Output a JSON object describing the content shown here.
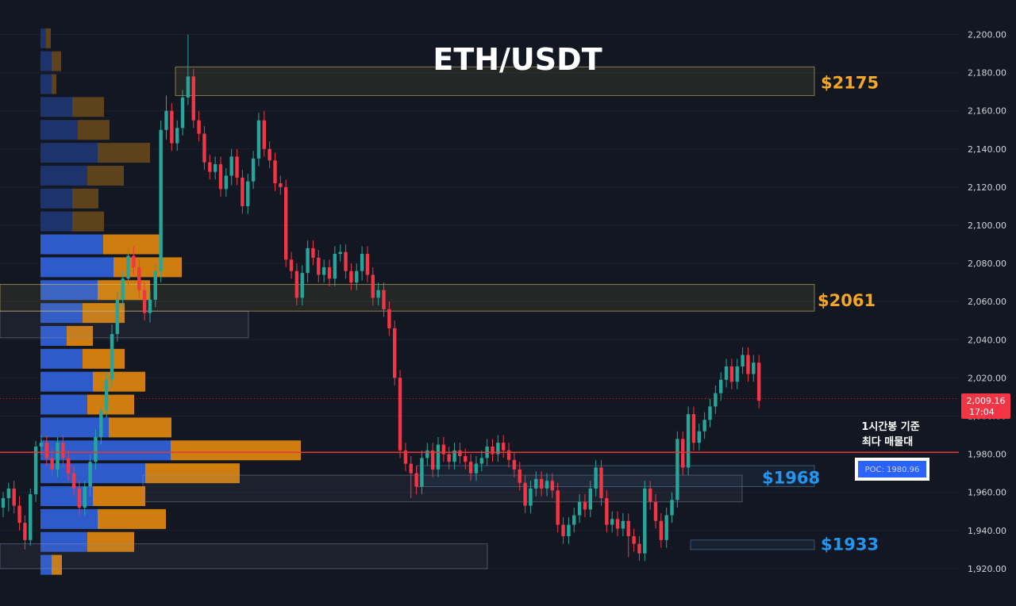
{
  "chart_data": {
    "type": "candlestick",
    "title": "ETH/USDT",
    "ylim": [
      1905,
      2208
    ],
    "y_ticks": [
      "2,200.00",
      "2,180.00",
      "2,160.00",
      "2,140.00",
      "2,120.00",
      "2,100.00",
      "2,080.00",
      "2,060.00",
      "2,040.00",
      "2,020.00",
      "2,000.00",
      "1,980.00",
      "1,960.00",
      "1,940.00",
      "1,920.00"
    ],
    "y_tick_values": [
      2200,
      2180,
      2160,
      2140,
      2120,
      2100,
      2080,
      2060,
      2040,
      2020,
      2000,
      1980,
      1960,
      1940,
      1920
    ],
    "last_price": {
      "value": 2009.16,
      "label": "2,009.16",
      "countdown": "17:04",
      "color": "#f23645"
    },
    "poc": {
      "value": 1980.96,
      "label": "POC:  1980.96",
      "color": "#2962ff"
    },
    "annotation": {
      "line1": "1시간봉 기준",
      "line2": "최다 매물대"
    },
    "levels": [
      {
        "label": "$2175",
        "value": 2175,
        "low": 2168,
        "high": 2183,
        "color": "#f5a623"
      },
      {
        "label": "$2061",
        "value": 2061,
        "low": 2055,
        "high": 2069,
        "color": "#f5a623"
      },
      {
        "label": "$1968",
        "value": 1968,
        "low": 1963,
        "high": 1974,
        "color": "#2196f3"
      },
      {
        "label": "$1933",
        "value": 1933,
        "low": 1930,
        "high": 1935,
        "color": "#2196f3"
      }
    ],
    "zones": [
      {
        "low": 2041,
        "high": 2055
      },
      {
        "low": 1955,
        "high": 1969
      },
      {
        "low": 1920,
        "high": 1933
      }
    ],
    "volume_profile": [
      {
        "price": 2198,
        "buy": 7,
        "sell": 6
      },
      {
        "price": 2186,
        "buy": 14,
        "sell": 12
      },
      {
        "price": 2174,
        "buy": 14,
        "sell": 6
      },
      {
        "price": 2162,
        "buy": 40,
        "sell": 40
      },
      {
        "price": 2150,
        "buy": 47,
        "sell": 40
      },
      {
        "price": 2138,
        "buy": 72,
        "sell": 66
      },
      {
        "price": 2126,
        "buy": 59,
        "sell": 46
      },
      {
        "price": 2114,
        "buy": 40,
        "sell": 33
      },
      {
        "price": 2102,
        "buy": 40,
        "sell": 40
      },
      {
        "price": 2090,
        "buy": 79,
        "sell": 72
      },
      {
        "price": 2078,
        "buy": 92,
        "sell": 86
      },
      {
        "price": 2066,
        "buy": 72,
        "sell": 66
      },
      {
        "price": 2054,
        "buy": 53,
        "sell": 53
      },
      {
        "price": 2042,
        "buy": 33,
        "sell": 33
      },
      {
        "price": 2030,
        "buy": 53,
        "sell": 53
      },
      {
        "price": 2018,
        "buy": 66,
        "sell": 66
      },
      {
        "price": 2006,
        "buy": 59,
        "sell": 59
      },
      {
        "price": 1994,
        "buy": 86,
        "sell": 79
      },
      {
        "price": 1982,
        "buy": 164,
        "sell": 164
      },
      {
        "price": 1970,
        "buy": 132,
        "sell": 119
      },
      {
        "price": 1958,
        "buy": 66,
        "sell": 66
      },
      {
        "price": 1946,
        "buy": 72,
        "sell": 86
      },
      {
        "price": 1934,
        "buy": 59,
        "sell": 59
      },
      {
        "price": 1922,
        "buy": 14,
        "sell": 13
      }
    ],
    "candles": [
      [
        1952,
        1957,
        1947,
        1960
      ],
      [
        1957,
        1962,
        1950,
        1965
      ],
      [
        1962,
        1953,
        1949,
        1966
      ],
      [
        1953,
        1944,
        1940,
        1958
      ],
      [
        1944,
        1935,
        1930,
        1948
      ],
      [
        1935,
        1959,
        1932,
        1962
      ],
      [
        1959,
        1984,
        1955,
        1987
      ],
      [
        1984,
        1986,
        1980,
        1990
      ],
      [
        1986,
        1978,
        1974,
        1990
      ],
      [
        1978,
        1972,
        1969,
        1983
      ],
      [
        1972,
        1986,
        1968,
        1989
      ],
      [
        1986,
        1978,
        1973,
        1990
      ],
      [
        1978,
        1970,
        1966,
        1982
      ],
      [
        1970,
        1962,
        1958,
        1974
      ],
      [
        1962,
        1952,
        1948,
        1966
      ],
      [
        1952,
        1963,
        1948,
        1966
      ],
      [
        1963,
        1976,
        1958,
        1980
      ],
      [
        1976,
        1989,
        1972,
        1993
      ],
      [
        1989,
        2003,
        1985,
        2006
      ],
      [
        2003,
        2019,
        1999,
        2023
      ],
      [
        2019,
        2043,
        2015,
        2048
      ],
      [
        2043,
        2061,
        2039,
        2065
      ],
      [
        2061,
        2072,
        2057,
        2076
      ],
      [
        2072,
        2084,
        2068,
        2088
      ],
      [
        2084,
        2078,
        2074,
        2089
      ],
      [
        2078,
        2066,
        2062,
        2082
      ],
      [
        2066,
        2054,
        2050,
        2070
      ],
      [
        2054,
        2061,
        2049,
        2066
      ],
      [
        2061,
        2076,
        2057,
        2080
      ],
      [
        2076,
        2150,
        2070,
        2155
      ],
      [
        2150,
        2160,
        2145,
        2168
      ],
      [
        2160,
        2143,
        2139,
        2164
      ],
      [
        2143,
        2151,
        2139,
        2155
      ],
      [
        2151,
        2167,
        2147,
        2171
      ],
      [
        2167,
        2178,
        2163,
        2200
      ],
      [
        2178,
        2155,
        2151,
        2182
      ],
      [
        2155,
        2148,
        2144,
        2160
      ],
      [
        2148,
        2133,
        2129,
        2152
      ],
      [
        2133,
        2128,
        2124,
        2137
      ],
      [
        2128,
        2132,
        2124,
        2136
      ],
      [
        2132,
        2119,
        2115,
        2136
      ],
      [
        2119,
        2126,
        2115,
        2130
      ],
      [
        2126,
        2136,
        2121,
        2140
      ],
      [
        2136,
        2125,
        2121,
        2140
      ],
      [
        2125,
        2110,
        2106,
        2129
      ],
      [
        2110,
        2123,
        2106,
        2127
      ],
      [
        2123,
        2135,
        2119,
        2139
      ],
      [
        2135,
        2155,
        2131,
        2159
      ],
      [
        2155,
        2140,
        2136,
        2160
      ],
      [
        2140,
        2134,
        2130,
        2144
      ],
      [
        2134,
        2122,
        2118,
        2138
      ],
      [
        2122,
        2120,
        2116,
        2126
      ],
      [
        2120,
        2082,
        2078,
        2124
      ],
      [
        2082,
        2076,
        2072,
        2086
      ],
      [
        2076,
        2062,
        2058,
        2080
      ],
      [
        2062,
        2075,
        2058,
        2079
      ],
      [
        2075,
        2088,
        2070,
        2092
      ],
      [
        2088,
        2083,
        2079,
        2092
      ],
      [
        2083,
        2074,
        2070,
        2087
      ],
      [
        2074,
        2078,
        2070,
        2082
      ],
      [
        2078,
        2072,
        2068,
        2082
      ],
      [
        2072,
        2085,
        2068,
        2089
      ],
      [
        2085,
        2086,
        2081,
        2090
      ],
      [
        2086,
        2076,
        2072,
        2090
      ],
      [
        2076,
        2070,
        2066,
        2080
      ],
      [
        2070,
        2076,
        2066,
        2080
      ],
      [
        2076,
        2085,
        2071,
        2089
      ],
      [
        2085,
        2074,
        2070,
        2089
      ],
      [
        2074,
        2062,
        2058,
        2078
      ],
      [
        2062,
        2066,
        2058,
        2070
      ],
      [
        2066,
        2056,
        2052,
        2070
      ],
      [
        2056,
        2046,
        2042,
        2060
      ],
      [
        2046,
        2020,
        2016,
        2050
      ],
      [
        2020,
        1982,
        1978,
        2024
      ],
      [
        1982,
        1975,
        1971,
        1986
      ],
      [
        1975,
        1970,
        1957,
        1979
      ],
      [
        1970,
        1963,
        1959,
        1974
      ],
      [
        1963,
        1978,
        1959,
        1982
      ],
      [
        1978,
        1982,
        1974,
        1986
      ],
      [
        1982,
        1972,
        1968,
        1986
      ],
      [
        1972,
        1985,
        1968,
        1989
      ],
      [
        1985,
        1980,
        1976,
        1989
      ],
      [
        1980,
        1976,
        1972,
        1984
      ],
      [
        1976,
        1982,
        1972,
        1986
      ],
      [
        1982,
        1979,
        1975,
        1986
      ],
      [
        1979,
        1976,
        1972,
        1983
      ],
      [
        1976,
        1970,
        1966,
        1980
      ],
      [
        1970,
        1975,
        1966,
        1979
      ],
      [
        1975,
        1978,
        1971,
        1982
      ],
      [
        1978,
        1984,
        1974,
        1988
      ],
      [
        1984,
        1980,
        1976,
        1988
      ],
      [
        1980,
        1986,
        1976,
        1990
      ],
      [
        1986,
        1982,
        1978,
        1990
      ],
      [
        1982,
        1977,
        1973,
        1986
      ],
      [
        1977,
        1972,
        1968,
        1981
      ],
      [
        1972,
        1965,
        1961,
        1976
      ],
      [
        1965,
        1953,
        1949,
        1969
      ],
      [
        1953,
        1962,
        1949,
        1966
      ],
      [
        1962,
        1967,
        1958,
        1971
      ],
      [
        1967,
        1962,
        1958,
        1971
      ],
      [
        1962,
        1966,
        1958,
        1970
      ],
      [
        1966,
        1961,
        1957,
        1970
      ],
      [
        1961,
        1943,
        1939,
        1965
      ],
      [
        1943,
        1937,
        1933,
        1947
      ],
      [
        1937,
        1943,
        1933,
        1947
      ],
      [
        1943,
        1948,
        1939,
        1952
      ],
      [
        1948,
        1955,
        1944,
        1959
      ],
      [
        1955,
        1951,
        1947,
        1959
      ],
      [
        1951,
        1962,
        1947,
        1966
      ],
      [
        1962,
        1973,
        1958,
        1977
      ],
      [
        1973,
        1957,
        1953,
        1977
      ],
      [
        1957,
        1943,
        1939,
        1961
      ],
      [
        1943,
        1946,
        1939,
        1950
      ],
      [
        1946,
        1941,
        1937,
        1950
      ],
      [
        1941,
        1945,
        1937,
        1949
      ],
      [
        1945,
        1937,
        1926,
        1949
      ],
      [
        1937,
        1933,
        1929,
        1941
      ],
      [
        1933,
        1928,
        1924,
        1937
      ],
      [
        1928,
        1962,
        1924,
        1966
      ],
      [
        1962,
        1955,
        1951,
        1966
      ],
      [
        1955,
        1945,
        1941,
        1959
      ],
      [
        1945,
        1935,
        1931,
        1949
      ],
      [
        1935,
        1948,
        1931,
        1952
      ],
      [
        1948,
        1956,
        1944,
        1960
      ],
      [
        1956,
        1988,
        1952,
        1992
      ],
      [
        1988,
        1973,
        1969,
        1992
      ],
      [
        1973,
        2001,
        1969,
        2005
      ],
      [
        2001,
        1986,
        1982,
        2005
      ],
      [
        1986,
        1992,
        1982,
        1996
      ],
      [
        1992,
        1998,
        1988,
        2002
      ],
      [
        1998,
        2005,
        1994,
        2009
      ],
      [
        2005,
        2012,
        2001,
        2016
      ],
      [
        2012,
        2019,
        2008,
        2023
      ],
      [
        2019,
        2026,
        2015,
        2030
      ],
      [
        2026,
        2018,
        2014,
        2030
      ],
      [
        2018,
        2026,
        2014,
        2030
      ],
      [
        2026,
        2032,
        2022,
        2036
      ],
      [
        2032,
        2022,
        2018,
        2036
      ],
      [
        2022,
        2028,
        2018,
        2032
      ],
      [
        2028,
        2008,
        2004,
        2032
      ]
    ]
  }
}
